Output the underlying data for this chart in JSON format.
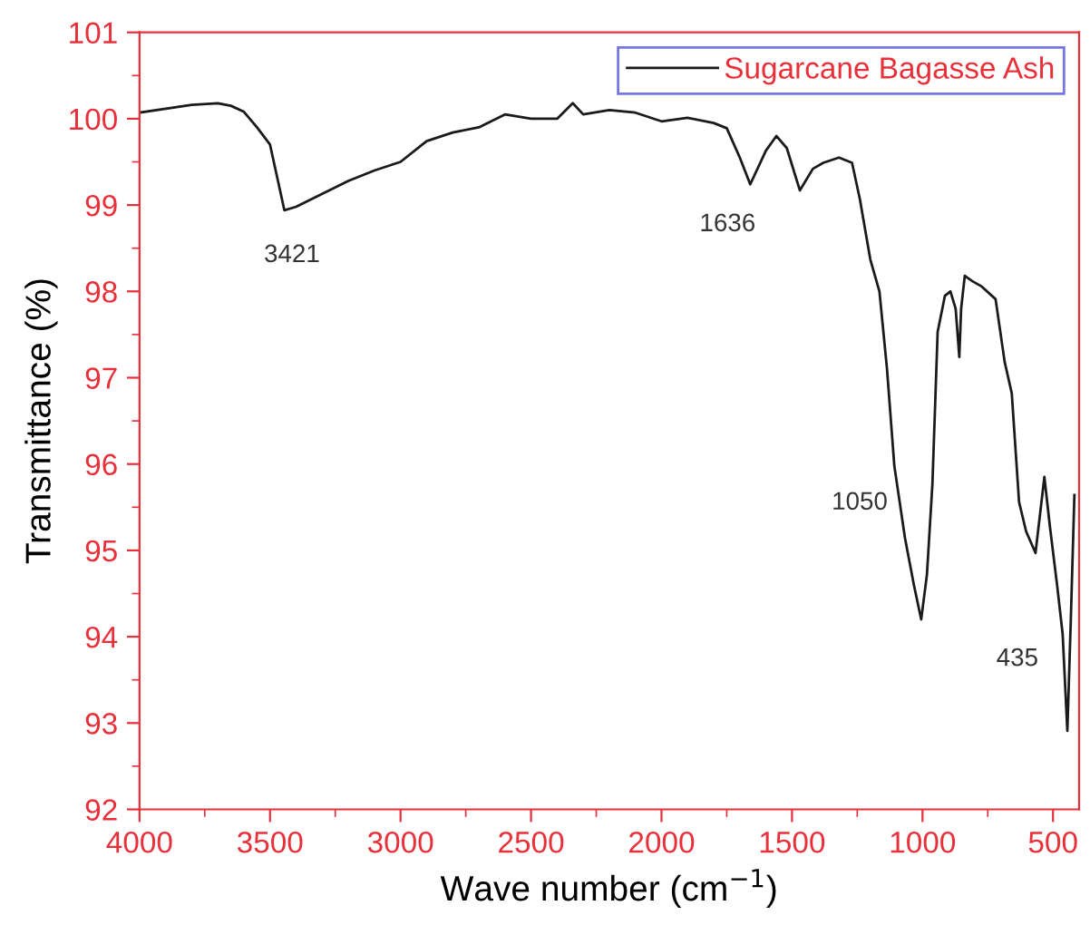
{
  "chart_data": {
    "type": "line",
    "xlabel": "Wave number (cm$^{−1}$)",
    "ylabel": "Transmittance (%)",
    "xlim": [
      4000,
      400
    ],
    "ylim": [
      92,
      101
    ],
    "xticks": [
      4000,
      3500,
      3000,
      2500,
      2000,
      1500,
      1000,
      500
    ],
    "yticks": [
      92,
      93,
      94,
      95,
      96,
      97,
      98,
      99,
      100,
      101
    ],
    "legend": "top right",
    "grid": false,
    "marker": "none",
    "line_style": "solid",
    "series": [
      {
        "name": "Sugarcane Bagasse Ash",
        "color": "#1a1a1a",
        "x": [
          4000,
          3800,
          3700,
          3650,
          3600,
          3550,
          3500,
          3445,
          3400,
          3300,
          3200,
          3100,
          3000,
          2900,
          2800,
          2700,
          2600,
          2500,
          2400,
          2340,
          2300,
          2200,
          2100,
          2000,
          1900,
          1800,
          1750,
          1700,
          1660,
          1600,
          1560,
          1520,
          1470,
          1420,
          1380,
          1320,
          1270,
          1240,
          1200,
          1165,
          1136,
          1108,
          1067,
          1033,
          1005,
          983,
          962,
          942,
          914,
          893,
          873,
          859,
          852,
          838,
          810,
          775,
          720,
          685,
          658,
          630,
          603,
          567,
          533,
          512,
          484,
          463,
          445,
          432,
          418
        ],
        "values": [
          100.07,
          100.16,
          100.18,
          100.15,
          100.08,
          99.9,
          99.7,
          98.94,
          98.98,
          99.13,
          99.28,
          99.4,
          99.5,
          99.74,
          99.84,
          99.9,
          100.05,
          100.0,
          100.0,
          100.18,
          100.05,
          100.1,
          100.07,
          99.97,
          100.01,
          99.95,
          99.89,
          99.55,
          99.24,
          99.63,
          99.8,
          99.66,
          99.17,
          99.42,
          99.49,
          99.55,
          99.49,
          99.07,
          98.37,
          98.0,
          97.1,
          95.98,
          95.14,
          94.6,
          94.2,
          94.72,
          95.77,
          97.53,
          97.95,
          98.0,
          97.8,
          97.24,
          97.8,
          98.18,
          98.12,
          98.06,
          97.91,
          97.18,
          96.82,
          95.56,
          95.22,
          94.97,
          95.85,
          95.28,
          94.59,
          94.03,
          92.91,
          94.17,
          95.64
        ]
      }
    ],
    "annotations": [
      {
        "text": "3421",
        "x": 3445,
        "y": 98.94
      },
      {
        "text": "1636",
        "x": 1660,
        "y": 99.24
      },
      {
        "text": "1050",
        "x": 1067,
        "y": 95.14
      },
      {
        "text": "435",
        "x": 463,
        "y": 94.03
      }
    ]
  }
}
